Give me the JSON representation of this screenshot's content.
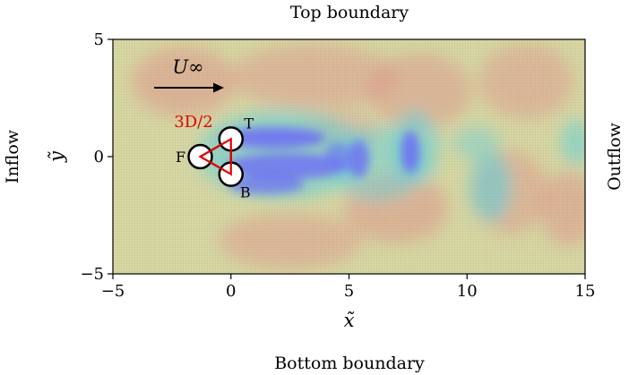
{
  "labels": {
    "top": "Top boundary",
    "bottom": "Bottom boundary",
    "left": "Inflow",
    "right": "Outflow"
  },
  "axes": {
    "xlabel": "x̃",
    "ylabel": "ỹ",
    "xlim": [
      -5,
      15
    ],
    "ylim": [
      -5,
      5
    ],
    "xticks": [
      -5,
      0,
      5,
      10,
      15
    ],
    "yticks": [
      -5,
      0,
      5
    ],
    "xtick_labels": [
      "−5",
      "0",
      "5",
      "10",
      "15"
    ],
    "ytick_labels": [
      "−5",
      "0",
      "5"
    ]
  },
  "flow": {
    "label": "U∞"
  },
  "cylinders": [
    {
      "name": "F",
      "x": -1.3,
      "y": 0.0
    },
    {
      "name": "T",
      "x": 0.0,
      "y": 0.75
    },
    {
      "name": "B",
      "x": 0.0,
      "y": -0.75
    }
  ],
  "spacing_label": "3D/2",
  "colors": {
    "background_field": "#d8d8a6",
    "vortex_blue": "#6a6aff",
    "vortex_cyan": "#5ad2e6",
    "vortex_red": "#e38a8a",
    "triangle": "#e00000",
    "arrow": "#000000"
  }
}
